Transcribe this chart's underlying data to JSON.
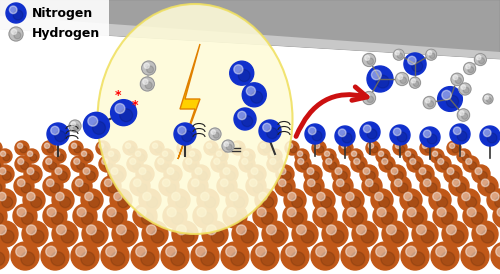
{
  "background_color": "#ffffff",
  "legend": {
    "nitrogen_color": "#1030cc",
    "hydrogen_color": "#c0c0c0",
    "nitrogen_label": "Nitrogen",
    "hydrogen_label": "Hydrogen"
  },
  "catalyst_color": "#c05818",
  "catalyst_highlight": "#e07830",
  "catalyst_shadow": "#903010",
  "arrow_color": "#cc1010",
  "plate_color": "#a0a0a0",
  "plate_light": "#c8c8c8",
  "lightning_color": "#ffd000",
  "lightning_outline": "#e08000",
  "glow_color": "#fefbd8",
  "glow_edge": "#f0e060"
}
